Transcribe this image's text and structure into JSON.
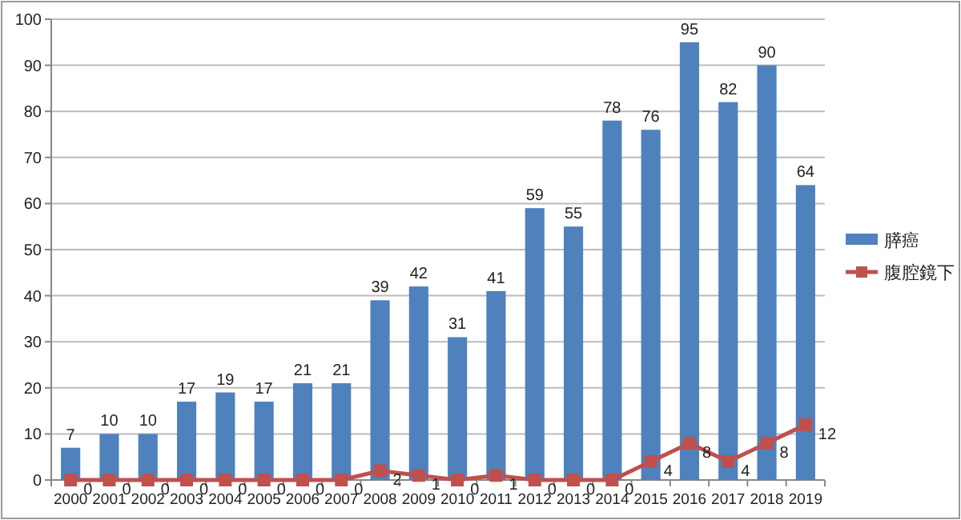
{
  "chart_data": {
    "type": "bar",
    "categories": [
      "2000",
      "2001",
      "2002",
      "2003",
      "2004",
      "2005",
      "2006",
      "2007",
      "2008",
      "2009",
      "2010",
      "2011",
      "2012",
      "2013",
      "2014",
      "2015",
      "2016",
      "2017",
      "2018",
      "2019"
    ],
    "series": [
      {
        "name": "膵癌",
        "color": "#4f81bd",
        "values": [
          7,
          10,
          10,
          17,
          19,
          17,
          21,
          21,
          39,
          42,
          31,
          41,
          59,
          55,
          78,
          76,
          95,
          82,
          90,
          64
        ]
      },
      {
        "name": "腹腔鏡下",
        "type": "line",
        "marker": "square",
        "color": "#c0504d",
        "values": [
          0,
          0,
          0,
          0,
          0,
          0,
          0,
          0,
          2,
          1,
          0,
          1,
          0,
          0,
          0,
          4,
          8,
          4,
          8,
          12
        ]
      }
    ],
    "ylim": [
      0,
      100
    ],
    "yticks": [
      0,
      10,
      20,
      30,
      40,
      50,
      60,
      70,
      80,
      90,
      100
    ],
    "grid": "y",
    "legend": "right",
    "data_labels": true
  }
}
